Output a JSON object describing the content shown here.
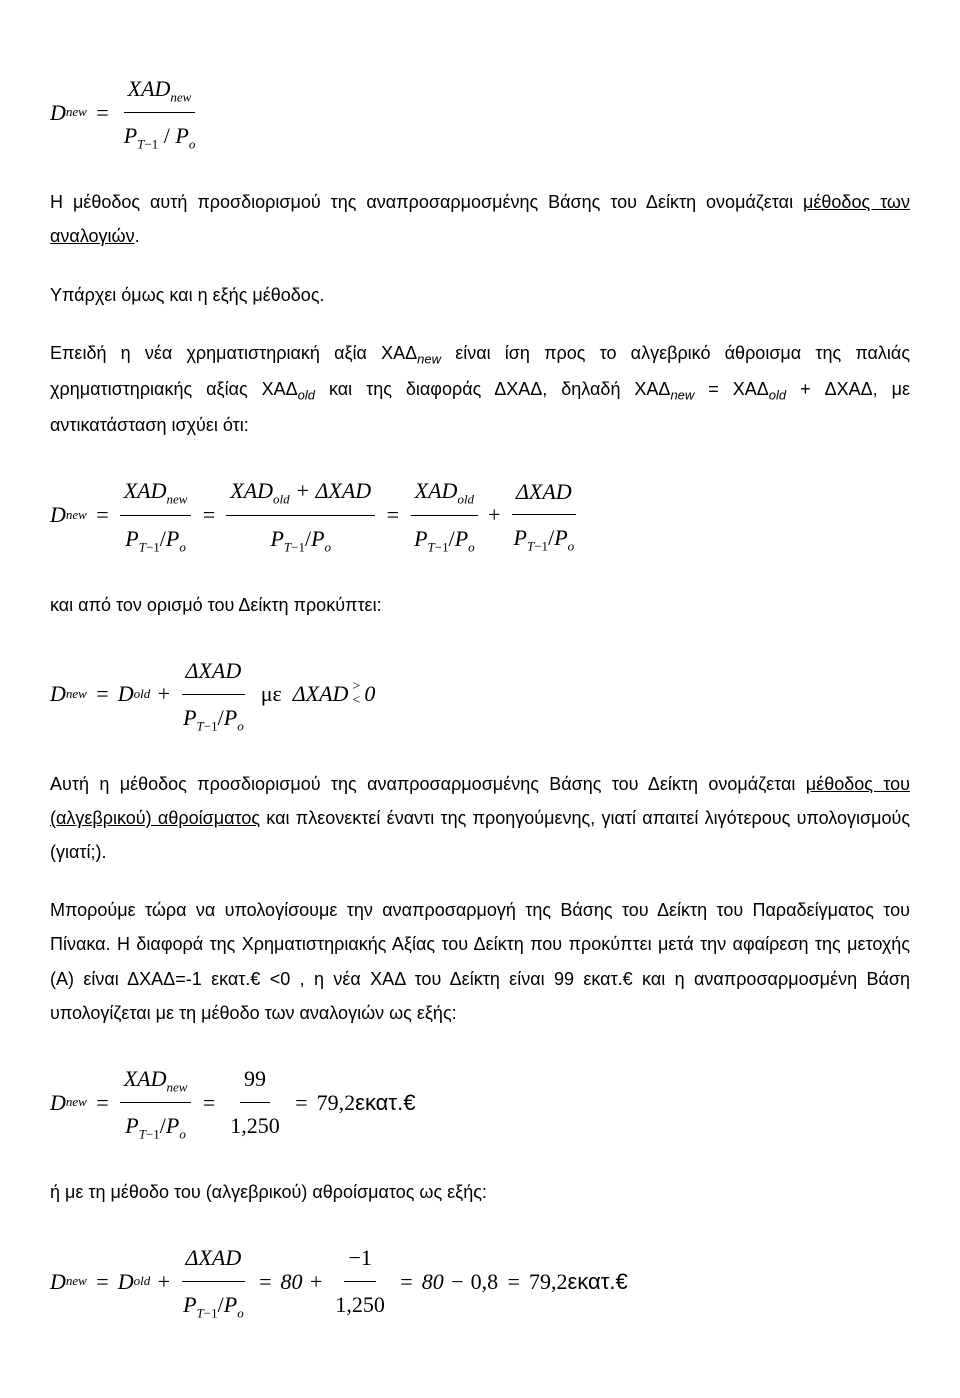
{
  "f1": {
    "D": "D",
    "sub_new": "new",
    "num": "XAD",
    "num_sub": "new",
    "den_l": "P",
    "den_l_sub": "T",
    "den_l_sub2": "−1",
    "den_r": "P",
    "den_r_sub": "o",
    "slash": "/"
  },
  "p1": {
    "a": "Η μέθοδος αυτή προσδιορισμού της αναπροσαρμοσμένης Βάσης του Δείκτη ονομάζεται ",
    "u": "μέθοδος των αναλογιών",
    "b": "."
  },
  "p2": "Υπάρχει όμως και η εξής μέθοδος.",
  "p3": {
    "a": "Επειδή η νέα χρηματιστηριακή αξία ΧΑΔ",
    "sub1": "new",
    "b": " είναι ίση προς το αλγεβρικό άθροισμα της παλιάς χρηματιστηριακής αξίας ΧΑΔ",
    "sub2": "old",
    "c": " και της διαφοράς ΔΧΑΔ, δηλαδή ΧΑΔ",
    "sub3": "new",
    "d": " = ΧΑΔ",
    "sub4": "old",
    "e": " + ΔΧΑΔ, με αντικατάσταση ισχύει ότι:"
  },
  "f2": {
    "lhs": "D",
    "lhs_sub": "new",
    "n1": "XAD",
    "n1s": "new",
    "n2a": "XAD",
    "n2as": "old",
    "n2b": " + ΔXAD",
    "n3": "XAD",
    "n3s": "old",
    "n4": "ΔXAD",
    "den": "P",
    "den_sub1": "T",
    "den_minus1": "−1",
    "slash": "/",
    "den2": "P",
    "den_sub2": "o"
  },
  "p4": "και από τον ορισμό του Δείκτη προκύπτει:",
  "f3": {
    "lhs": "D",
    "lhs_sub": "new",
    "Dold": "D",
    "Dold_sub": "old",
    "num": "ΔXAD",
    "den": "P",
    "den_sub1": "T",
    "den_minus1": "−1",
    "slash": "/",
    "den2": "P",
    "den_sub2": "o",
    "me": "  με  ",
    "dxad": "ΔXAD",
    "gt": ">",
    "lt": "<",
    "zero": "0"
  },
  "p5": {
    "a": "Αυτή η μέθοδος προσδιορισμού της αναπροσαρμοσμένης Βάσης του Δείκτη ονομάζεται ",
    "u": "μέθοδος του (αλγεβρικού) αθροίσματος",
    "b": " και πλεονεκτεί έναντι της προηγούμενης, γιατί απαιτεί λιγότερους υπολογισμούς (γιατί;)."
  },
  "p6": "Μπορούμε τώρα να υπολογίσουμε την αναπροσαρμογή της Βάσης του Δείκτη του Παραδείγματος του Πίνακα. Η διαφορά της Χρηματιστηριακής Αξίας του Δείκτη που προκύπτει μετά την αφαίρεση της μετοχής (Α) είναι ΔΧΑΔ=-1 εκατ.€ <0 , η νέα ΧΑΔ του Δείκτη είναι 99 εκατ.€ και η αναπροσαρμοσμένη Βάση υπολογίζεται με τη μέθοδο των αναλογιών ως εξής:",
  "f4": {
    "lhs": "D",
    "lhs_sub": "new",
    "n1": "XAD",
    "n1s": "new",
    "den": "P",
    "den_sub1": "T",
    "den_minus1": "−1",
    "slash": "/",
    "den2": "P",
    "den_sub2": "o",
    "n2": "99",
    "d2": "1,250",
    "result": "79,2",
    "unit": " εκατ.€"
  },
  "p7": "ή με τη μέθοδο του (αλγεβρικού) αθροίσματος ως εξής:",
  "f5": {
    "lhs": "D",
    "lhs_sub": "new",
    "Dold": "D",
    "Dold_sub": "old",
    "num": "ΔXAD",
    "den": "P",
    "den_sub1": "T",
    "den_minus1": "−1",
    "slash": "/",
    "den2": "P",
    "den_sub2": "o",
    "v80": "80",
    "n2": "−1",
    "d2": "1,250",
    "v08": "0,8",
    "result": "79,2",
    "unit": " εκατ.€"
  }
}
